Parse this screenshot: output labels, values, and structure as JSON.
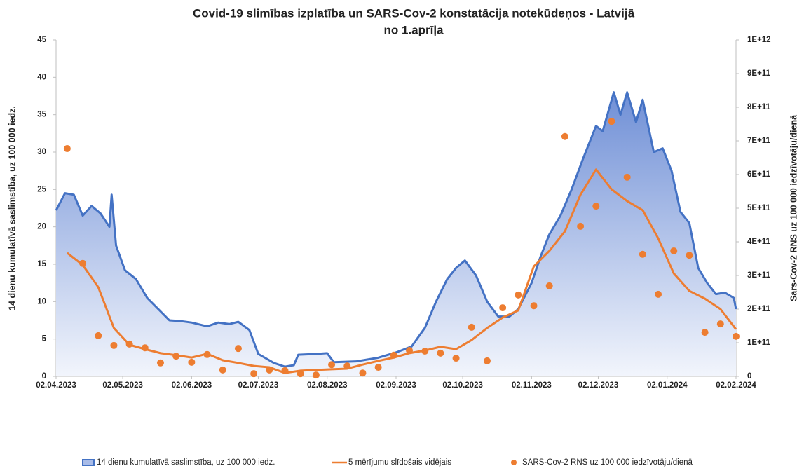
{
  "chart_data": {
    "type": "combo",
    "title": [
      "Covid-19 slimības izplatība un SARS-Cov-2 konstatācija notekūdeņos - Latvijā",
      "no 1.aprīļa"
    ],
    "y_label": "14 dienu kumulatīvā saslimstība, uz 100 000 iedz.",
    "y2_label": "Sars-Cov-2 RNS uz 100 000 iedzīvotāju/dienā",
    "xlim": [
      "02.04.2023",
      "02.02.2024"
    ],
    "xticks": [
      "02.04.2023",
      "02.05.2023",
      "02.06.2023",
      "02.07.2023",
      "02.08.2023",
      "02.09.2023",
      "02.10.2023",
      "02.11.2023",
      "02.12.2023",
      "02.01.2024",
      "02.02.2024"
    ],
    "ylim": [
      0,
      45
    ],
    "yticks": [
      0,
      5,
      10,
      15,
      20,
      25,
      30,
      35,
      40,
      45
    ],
    "y2lim": [
      0,
      1000000000000.0
    ],
    "y2ticks": [
      0,
      {
        "value": 100000000000.0,
        "label": "1E+11"
      },
      {
        "value": 200000000000.0,
        "label": "2E+11"
      },
      {
        "value": 300000000000.0,
        "label": "3E+11"
      },
      {
        "value": 400000000000.0,
        "label": "4E+11"
      },
      {
        "value": 500000000000.0,
        "label": "5E+11"
      },
      {
        "value": 600000000000.0,
        "label": "6E+11"
      },
      {
        "value": 700000000000.0,
        "label": "7E+11"
      },
      {
        "value": 800000000000.0,
        "label": "8E+11"
      },
      {
        "value": 900000000000.0,
        "label": "9E+11"
      },
      {
        "value": 1000000000000.0,
        "label": "1E+12"
      }
    ],
    "legend": "bottom",
    "series": [
      {
        "name": "14 dienu kumulatīvā saslimstība, uz 100 000 iedz.",
        "type": "area",
        "color": "#4472c4",
        "x": [
          "02.04.2023",
          "06.04.2023",
          "10.04.2023",
          "14.04.2023",
          "18.04.2023",
          "22.04.2023",
          "26.04.2023",
          "27.04.2023",
          "29.04.2023",
          "03.05.2023",
          "08.05.2023",
          "13.05.2023",
          "18.05.2023",
          "23.05.2023",
          "28.05.2023",
          "02.06.2023",
          "09.06.2023",
          "14.06.2023",
          "19.06.2023",
          "23.06.2023",
          "28.06.2023",
          "02.07.2023",
          "09.07.2023",
          "14.07.2023",
          "18.07.2023",
          "20.07.2023",
          "28.07.2023",
          "02.08.2023",
          "05.08.2023",
          "15.08.2023",
          "25.08.2023",
          "02.09.2023",
          "09.09.2023",
          "15.09.2023",
          "20.09.2023",
          "25.09.2023",
          "29.09.2023",
          "03.10.2023",
          "08.10.2023",
          "13.10.2023",
          "18.10.2023",
          "23.10.2023",
          "27.10.2023",
          "02.11.2023",
          "06.11.2023",
          "10.11.2023",
          "15.11.2023",
          "20.11.2023",
          "25.11.2023",
          "01.12.2023",
          "04.12.2023",
          "09.12.2023",
          "12.12.2023",
          "15.12.2023",
          "19.12.2023",
          "22.12.2023",
          "27.12.2023",
          "31.12.2023",
          "04.01.2024",
          "08.01.2024",
          "12.01.2024",
          "16.01.2024",
          "20.01.2024",
          "24.01.2024",
          "28.01.2024",
          "01.02.2024",
          "02.02.2024"
        ],
        "values": [
          22.2,
          24.5,
          24.3,
          21.5,
          22.8,
          21.8,
          20.0,
          24.3,
          17.5,
          14.2,
          13.0,
          10.5,
          9.0,
          7.5,
          7.4,
          7.2,
          6.7,
          7.2,
          7.0,
          7.3,
          6.2,
          3.0,
          1.8,
          1.3,
          1.5,
          2.9,
          3.0,
          3.1,
          1.9,
          2.0,
          2.5,
          3.2,
          4.0,
          6.5,
          10.0,
          13.0,
          14.5,
          15.5,
          13.5,
          10.0,
          8.0,
          8.0,
          9.0,
          12.5,
          16.0,
          19.0,
          21.5,
          25.0,
          29.0,
          33.5,
          32.8,
          38.0,
          35.0,
          38.0,
          34.0,
          37.0,
          30.0,
          30.5,
          27.5,
          22.0,
          20.5,
          14.5,
          12.5,
          11.0,
          11.2,
          10.5,
          9.0
        ]
      },
      {
        "name": "5 mērījumu slīdošais vidējais",
        "type": "line",
        "axis": "y2",
        "color": "#ed7d31",
        "x": [
          "07.04.2023",
          "14.04.2023",
          "21.04.2023",
          "28.04.2023",
          "05.05.2023",
          "12.05.2023",
          "19.05.2023",
          "26.05.2023",
          "02.06.2023",
          "09.06.2023",
          "16.06.2023",
          "23.06.2023",
          "30.06.2023",
          "07.07.2023",
          "14.07.2023",
          "21.07.2023",
          "28.07.2023",
          "04.08.2023",
          "11.08.2023",
          "18.08.2023",
          "25.08.2023",
          "01.09.2023",
          "08.09.2023",
          "15.09.2023",
          "22.09.2023",
          "29.09.2023",
          "06.10.2023",
          "13.10.2023",
          "20.10.2023",
          "27.10.2023",
          "03.11.2023",
          "10.11.2023",
          "17.11.2023",
          "24.11.2023",
          "01.12.2023",
          "08.12.2023",
          "15.12.2023",
          "22.12.2023",
          "29.12.2023",
          "05.01.2024",
          "12.01.2024",
          "19.01.2024",
          "26.01.2024",
          "02.02.2024"
        ],
        "values": [
          367000000000.0,
          331000000000.0,
          265000000000.0,
          144000000000.0,
          94000000000.0,
          81000000000.0,
          69000000000.0,
          63000000000.0,
          56000000000.0,
          67000000000.0,
          48000000000.0,
          40000000000.0,
          31000000000.0,
          27000000000.0,
          10000000000.0,
          17000000000.0,
          19000000000.0,
          21000000000.0,
          23000000000.0,
          35000000000.0,
          46000000000.0,
          56000000000.0,
          69000000000.0,
          77000000000.0,
          88000000000.0,
          81000000000.0,
          108000000000.0,
          144000000000.0,
          175000000000.0,
          196000000000.0,
          327000000000.0,
          373000000000.0,
          431000000000.0,
          540000000000.0,
          615000000000.0,
          556000000000.0,
          521000000000.0,
          494000000000.0,
          410000000000.0,
          306000000000.0,
          254000000000.0,
          231000000000.0,
          200000000000.0,
          140000000000.0
        ]
      },
      {
        "name": "SARS-Cov-2 RNS uz 100 000 iedzīvotāju/dienā",
        "type": "scatter",
        "axis": "y2",
        "color": "#ed7d31",
        "x": [
          "07.04.2023",
          "14.04.2023",
          "21.04.2023",
          "28.04.2023",
          "05.05.2023",
          "12.05.2023",
          "19.05.2023",
          "26.05.2023",
          "02.06.2023",
          "09.06.2023",
          "16.06.2023",
          "23.06.2023",
          "30.06.2023",
          "07.07.2023",
          "14.07.2023",
          "21.07.2023",
          "28.07.2023",
          "04.08.2023",
          "11.08.2023",
          "18.08.2023",
          "25.08.2023",
          "01.09.2023",
          "08.09.2023",
          "15.09.2023",
          "22.09.2023",
          "29.09.2023",
          "06.10.2023",
          "13.10.2023",
          "20.10.2023",
          "27.10.2023",
          "03.11.2023",
          "10.11.2023",
          "17.11.2023",
          "24.11.2023",
          "01.12.2023",
          "08.12.2023",
          "15.12.2023",
          "22.12.2023",
          "29.12.2023",
          "05.01.2024",
          "12.01.2024",
          "19.01.2024",
          "26.01.2024",
          "02.02.2024"
        ],
        "values": [
          677000000000.0,
          336000000000.0,
          121000000000.0,
          92000000000.0,
          96000000000.0,
          85000000000.0,
          40000000000.0,
          60000000000.0,
          42000000000.0,
          65000000000.0,
          19000000000.0,
          83000000000.0,
          8000000000.0,
          19000000000.0,
          17000000000.0,
          8000000000.0,
          4000000000.0,
          35000000000.0,
          31000000000.0,
          10000000000.0,
          27000000000.0,
          63000000000.0,
          77000000000.0,
          75000000000.0,
          69000000000.0,
          54000000000.0,
          146000000000.0,
          46000000000.0,
          204000000000.0,
          242000000000.0,
          210000000000.0,
          269000000000.0,
          713000000000.0,
          446000000000.0,
          506000000000.0,
          758000000000.0,
          592000000000.0,
          363000000000.0,
          244000000000.0,
          373000000000.0,
          360000000000.0,
          131000000000.0,
          156000000000.0,
          119000000000.0
        ]
      }
    ]
  }
}
